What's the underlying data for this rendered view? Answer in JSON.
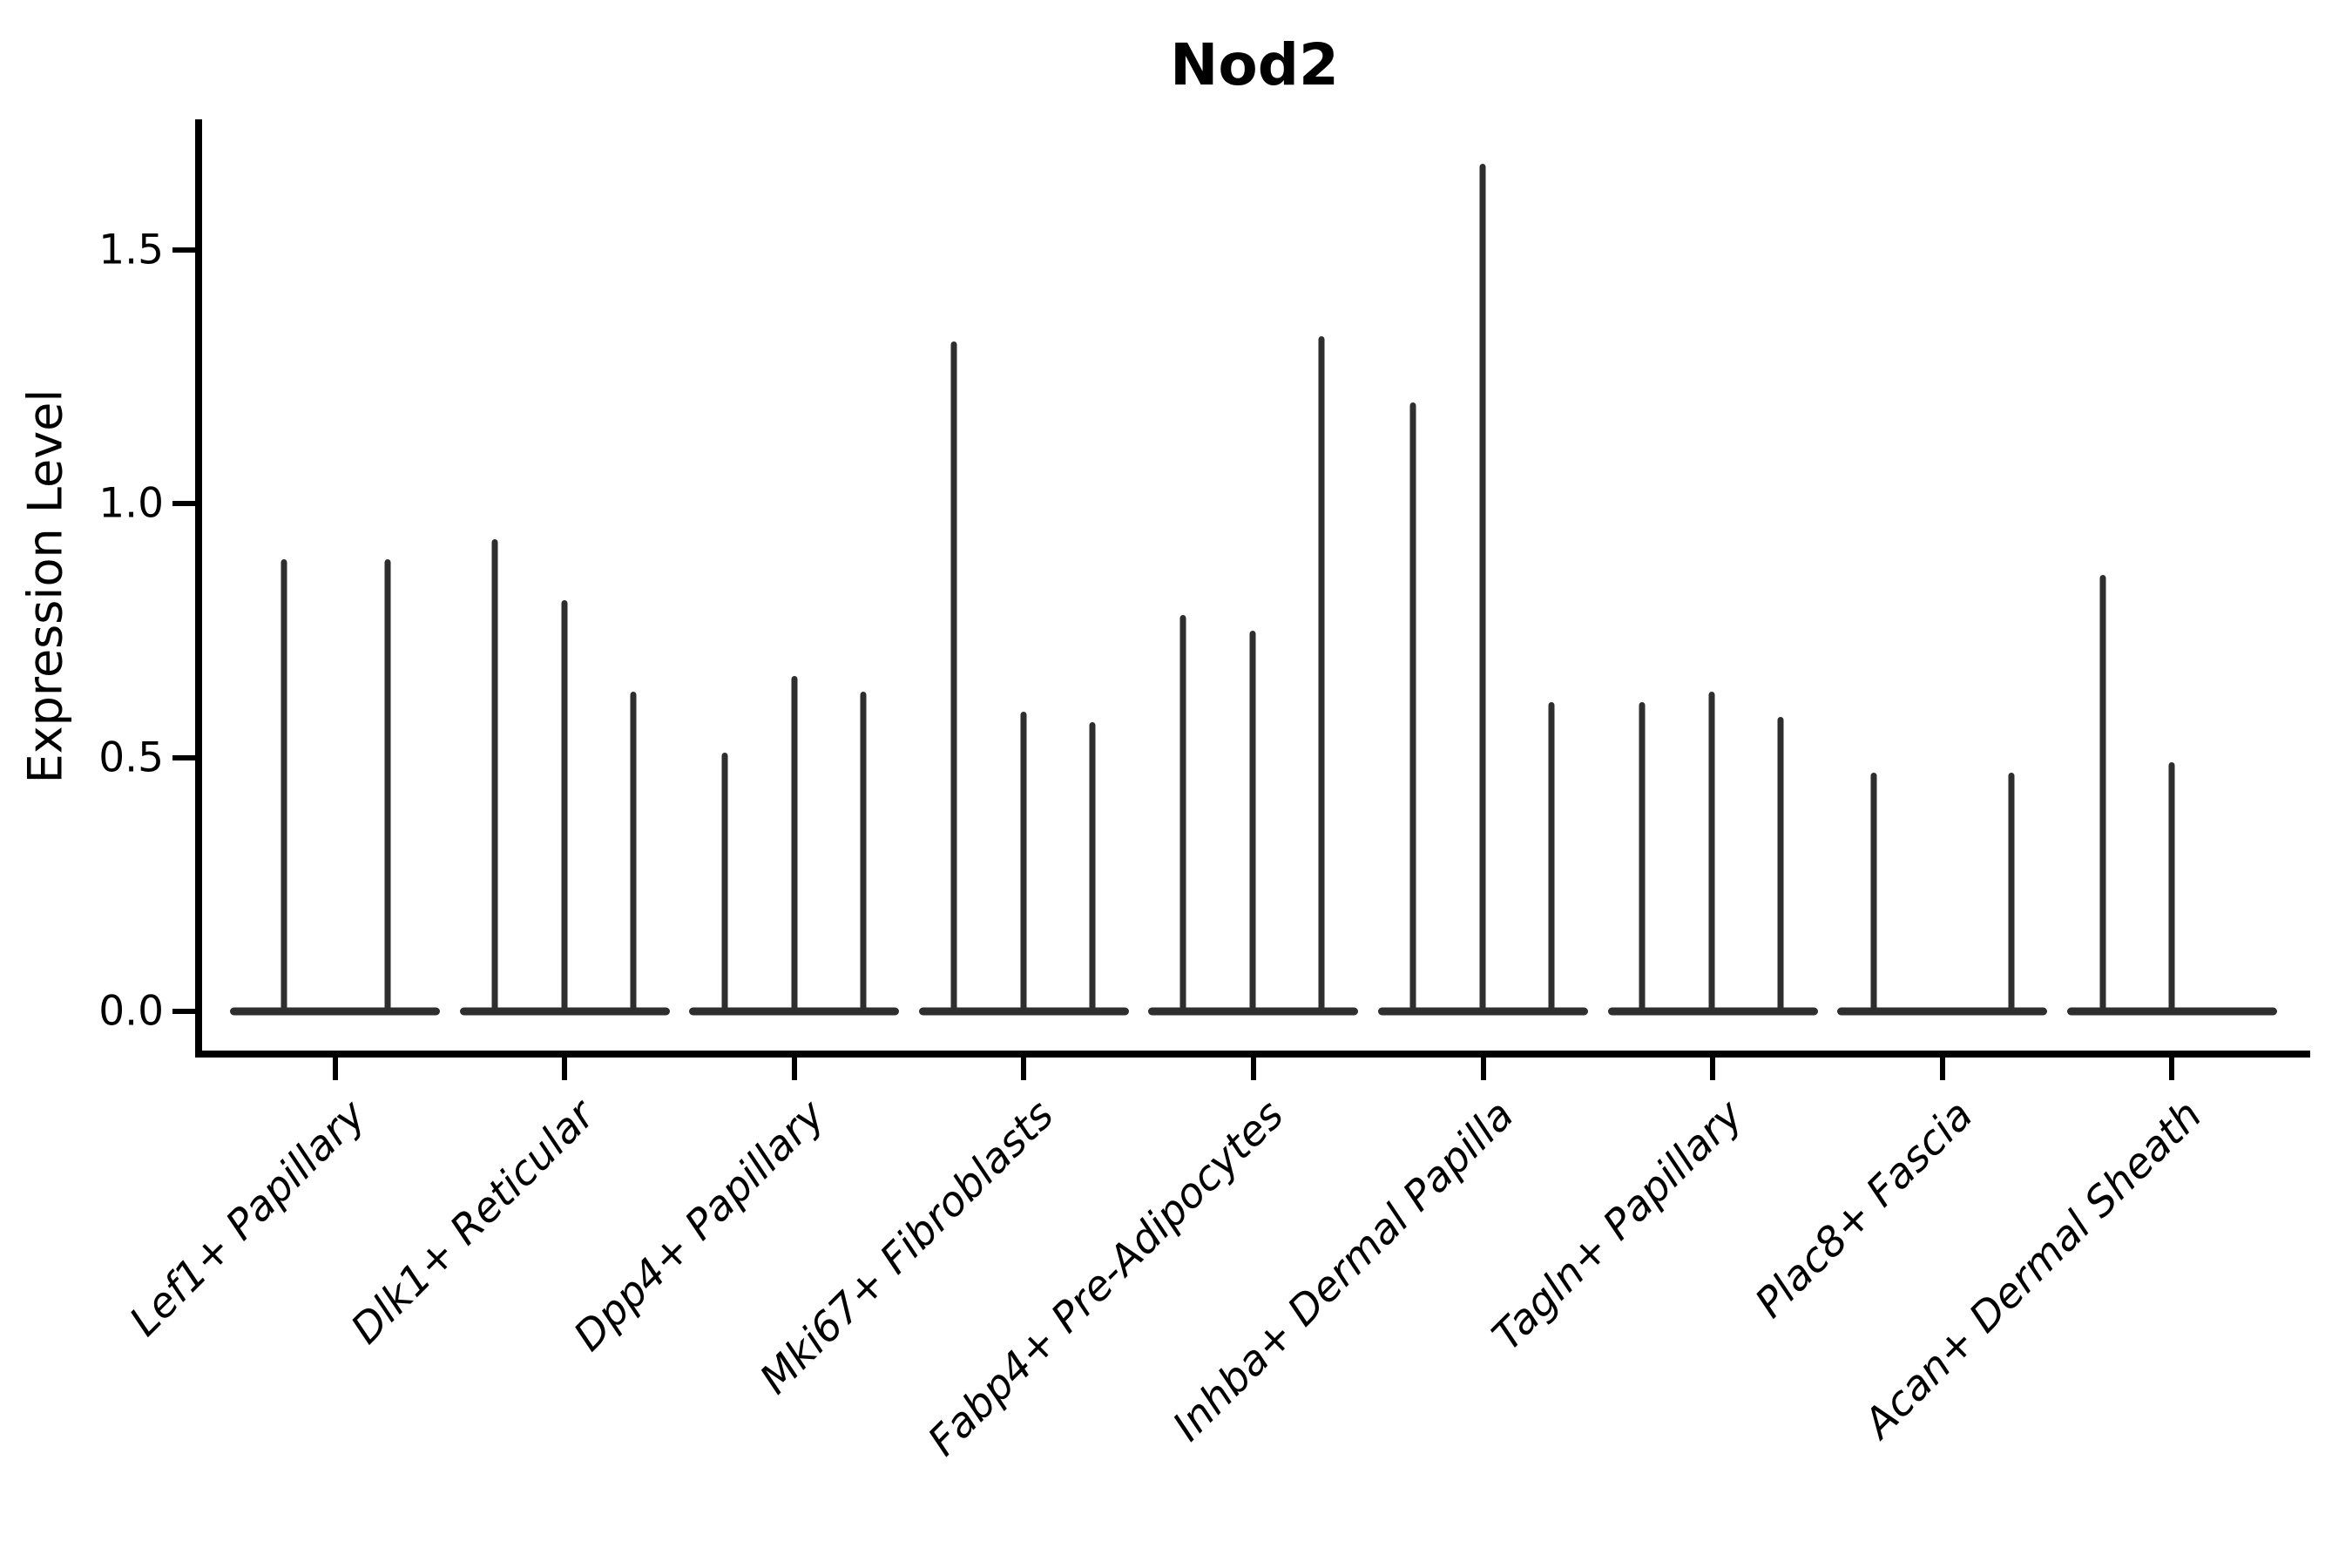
{
  "figure": {
    "title": "Nod2"
  },
  "y_axis": {
    "label": "Expression Level",
    "ticks": [
      {
        "label": "1.5",
        "value": 1.5
      },
      {
        "label": "1.0",
        "value": 1.0
      },
      {
        "label": "0.5",
        "value": 0.5
      },
      {
        "label": "0.0",
        "value": 0.0
      }
    ]
  },
  "x_axis": {
    "categories": [
      "Lef1+ Papillary",
      "Dlk1+ Reticular",
      "Dpp4+ Papillary",
      "Mki67+ Fibroblasts",
      "Fabp4+ Pre-Adipocytes",
      "Inhba+ Dermal Papilla",
      "Tagln+ Papillary",
      "Plac8+ Fascia",
      "Acan+ Dermal Sheath"
    ]
  },
  "chart_data": {
    "type": "violin",
    "title": "Nod2",
    "xlabel": "",
    "ylabel": "Expression Level",
    "ylim": [
      0,
      1.76
    ],
    "yticks": [
      0.0,
      0.5,
      1.0,
      1.5
    ],
    "grid": false,
    "legend": "none",
    "note": "Sparse-expression violins rendered as thin vertical spikes (max expression) over a flat base at 0; several dodged violins per category",
    "categories": [
      "Lef1+ Papillary",
      "Dlk1+ Reticular",
      "Dpp4+ Papillary",
      "Mki67+ Fibroblasts",
      "Fabp4+ Pre-Adipocytes",
      "Inhba+ Dermal Papilla",
      "Tagln+ Papillary",
      "Plac8+ Fascia",
      "Acan+ Dermal Sheath"
    ],
    "groups": [
      {
        "category": "Lef1+ Papillary",
        "violins": [
          {
            "max": 0.89,
            "dx": -59
          },
          {
            "max": 0.89,
            "dx": 60
          }
        ]
      },
      {
        "category": "Dlk1+ Reticular",
        "violins": [
          {
            "max": 0.93,
            "dx": -80
          },
          {
            "max": 0.81,
            "dx": 0
          },
          {
            "max": 0.63,
            "dx": 79
          }
        ]
      },
      {
        "category": "Dpp4+ Papillary",
        "violins": [
          {
            "max": 0.51,
            "dx": -80
          },
          {
            "max": 0.66,
            "dx": 0
          },
          {
            "max": 0.63,
            "dx": 79
          }
        ]
      },
      {
        "category": "Mki67+ Fibroblasts",
        "violins": [
          {
            "max": 1.32,
            "dx": -80
          },
          {
            "max": 0.59,
            "dx": 0
          },
          {
            "max": 0.57,
            "dx": 79
          }
        ]
      },
      {
        "category": "Fabp4+ Pre-Adipocytes",
        "violins": [
          {
            "max": 0.78,
            "dx": -81
          },
          {
            "max": 0.75,
            "dx": -1
          },
          {
            "max": 1.33,
            "dx": 78
          }
        ]
      },
      {
        "category": "Inhba+ Dermal Papilla",
        "violins": [
          {
            "max": 1.2,
            "dx": -81
          },
          {
            "max": 1.67,
            "dx": -1
          },
          {
            "max": 0.61,
            "dx": 78
          }
        ]
      },
      {
        "category": "Tagln+ Papillary",
        "violins": [
          {
            "max": 0.61,
            "dx": -81
          },
          {
            "max": 0.63,
            "dx": -1
          },
          {
            "max": 0.58,
            "dx": 78
          }
        ]
      },
      {
        "category": "Plac8+ Fascia",
        "violins": [
          {
            "max": 0.47,
            "dx": -79
          },
          {
            "max": 0.47,
            "dx": 79
          }
        ]
      },
      {
        "category": "Acan+ Dermal Sheath",
        "violins": [
          {
            "max": 0.86,
            "dx": -79
          },
          {
            "max": 0.49,
            "dx": 0
          }
        ]
      }
    ],
    "colors": {
      "violin_line": "#2e2e2e",
      "axis": "#000000",
      "text": "#000000",
      "background": "#ffffff"
    }
  }
}
